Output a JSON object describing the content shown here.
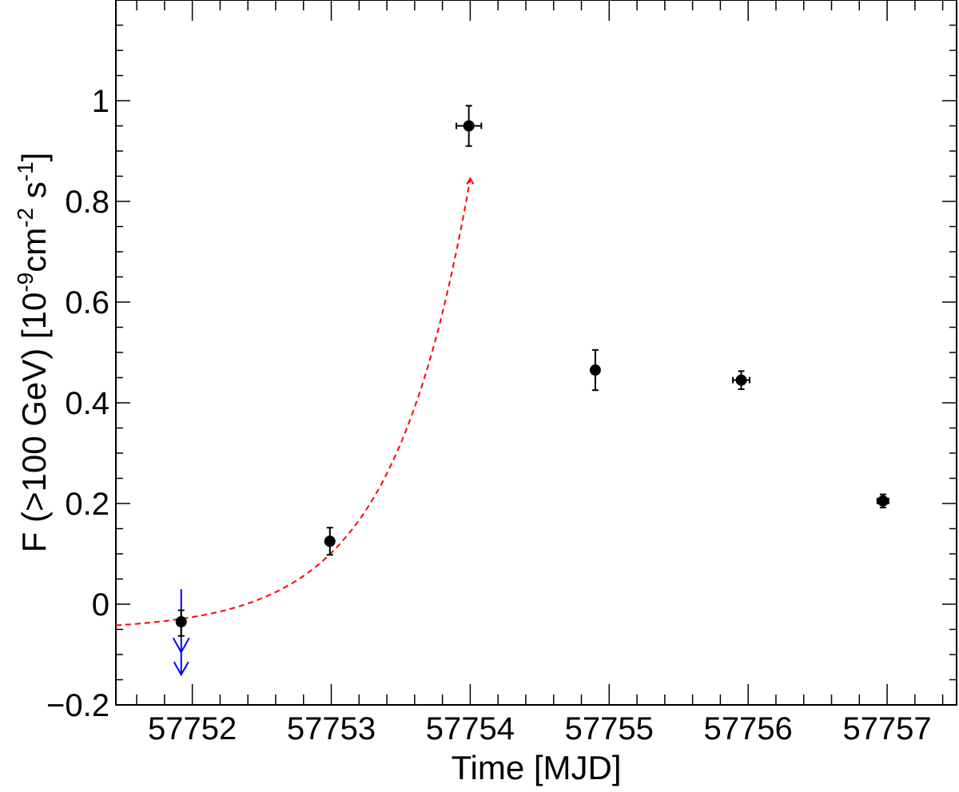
{
  "chart_data": {
    "type": "scatter",
    "title": "",
    "xlabel": "Time [MJD]",
    "ylabel": {
      "parts": [
        "F (>100 GeV) [10",
        "-9",
        "cm",
        "-2",
        " s",
        "-1",
        "]"
      ]
    },
    "xlim": [
      57751.45,
      57757.5
    ],
    "ylim": [
      -0.2,
      1.2
    ],
    "grid": false,
    "x_ticks": [
      {
        "value": 57752,
        "label": "57752"
      },
      {
        "value": 57753,
        "label": "57753"
      },
      {
        "value": 57754,
        "label": "57754"
      },
      {
        "value": 57755,
        "label": "57755"
      },
      {
        "value": 57756,
        "label": "57756"
      },
      {
        "value": 57757,
        "label": "57757"
      }
    ],
    "y_ticks": [
      {
        "value": -0.2,
        "label": "−0.2"
      },
      {
        "value": 0,
        "label": "0"
      },
      {
        "value": 0.2,
        "label": "0.2"
      },
      {
        "value": 0.4,
        "label": "0.4"
      },
      {
        "value": 0.6,
        "label": "0.6"
      },
      {
        "value": 0.8,
        "label": "0.8"
      },
      {
        "value": 1,
        "label": "1"
      }
    ],
    "series": [
      {
        "marker": "circle",
        "color": "#000000",
        "points": [
          {
            "x": 57751.92,
            "y": -0.035,
            "yerr": [
              0.028,
              0.023
            ],
            "xerr": 0
          },
          {
            "x": 57752.99,
            "y": 0.125,
            "yerr": [
              0.027,
              0.027
            ],
            "xerr": 0
          },
          {
            "x": 57753.99,
            "y": 0.95,
            "yerr": [
              0.04,
              0.04
            ],
            "xerr": 0.09
          },
          {
            "x": 57754.9,
            "y": 0.465,
            "yerr": [
              0.04,
              0.04
            ],
            "xerr": 0
          },
          {
            "x": 57755.95,
            "y": 0.445,
            "yerr": [
              0.018,
              0.018
            ],
            "xerr": 0.06
          },
          {
            "x": 57756.97,
            "y": 0.205,
            "yerr": [
              0.013,
              0.013
            ],
            "xerr": 0.04
          }
        ]
      }
    ],
    "upper_limit": {
      "x": 57751.92,
      "y": 0.03,
      "y_end": -0.14,
      "color": "#0000ff"
    },
    "fit_curve": {
      "style": "dashed",
      "color": "#ff0000",
      "model": "exponential",
      "baseline": -0.052,
      "amplitude": 0.0229,
      "t0": 57751.92,
      "tau": 0.567,
      "x_range": [
        57751.45,
        57754.0
      ]
    }
  }
}
